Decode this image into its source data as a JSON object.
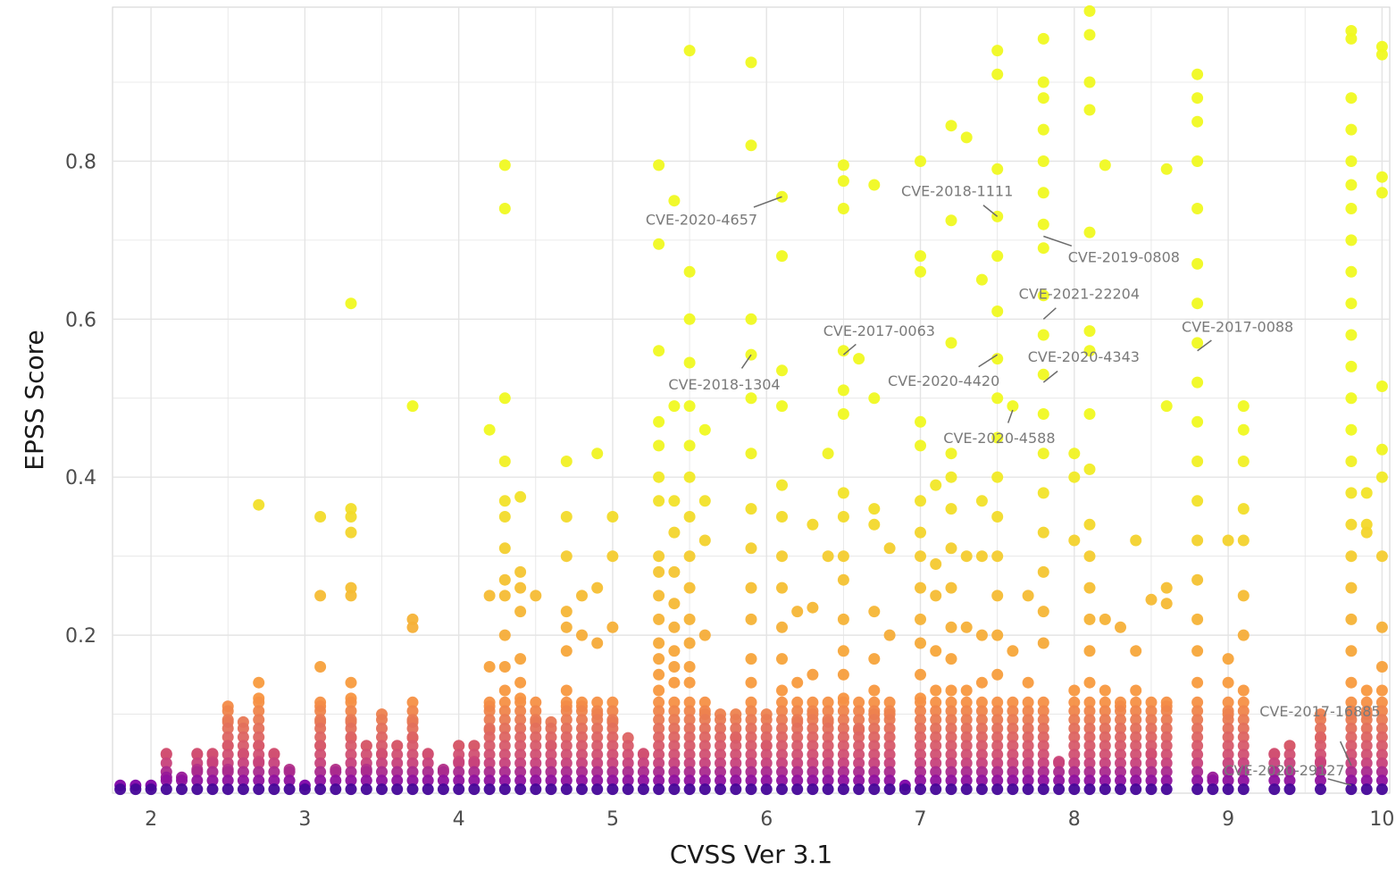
{
  "chart_data": {
    "type": "scatter",
    "xlabel": "CVSS Ver 3.1",
    "ylabel": "EPSS Score",
    "xlim": [
      1.75,
      10.05
    ],
    "ylim": [
      0,
      0.995
    ],
    "x_ticks": [
      2,
      3,
      4,
      5,
      6,
      7,
      8,
      9,
      10
    ],
    "x_tick_labels": [
      "2",
      "3",
      "4",
      "5",
      "6",
      "7",
      "8",
      "9",
      "10"
    ],
    "y_ticks": [
      0.2,
      0.4,
      0.6,
      0.8
    ],
    "y_tick_labels": [
      "0.2",
      "0.4",
      "0.6",
      "0.8"
    ],
    "grid": true,
    "legend": "none",
    "color_scale": "plasma (point density / colour by value)",
    "colors": [
      "#0d0887",
      "#7e03a8",
      "#cc4778",
      "#f89540",
      "#f0f921"
    ],
    "columns": [
      {
        "x": 1.8,
        "high": [
          0.01
        ]
      },
      {
        "x": 1.9,
        "high": [
          0.01
        ]
      },
      {
        "x": 2.0,
        "high": [
          0.01
        ]
      },
      {
        "x": 2.1,
        "high": [
          0.05,
          0.02
        ]
      },
      {
        "x": 2.2,
        "high": [
          0.02
        ]
      },
      {
        "x": 2.3,
        "high": [
          0.05,
          0.03
        ]
      },
      {
        "x": 2.4,
        "high": [
          0.05,
          0.04
        ]
      },
      {
        "x": 2.5,
        "high": [
          0.11,
          0.09,
          0.06,
          0.03
        ]
      },
      {
        "x": 2.6,
        "high": [
          0.09,
          0.05
        ]
      },
      {
        "x": 2.7,
        "high": [
          0.365,
          0.14,
          0.12,
          0.06,
          0.04
        ]
      },
      {
        "x": 2.8,
        "high": [
          0.05
        ]
      },
      {
        "x": 2.9,
        "high": [
          0.03
        ]
      },
      {
        "x": 3.0,
        "high": [
          0.01
        ]
      },
      {
        "x": 3.1,
        "high": [
          0.35,
          0.25,
          0.16,
          0.11,
          0.09,
          0.06
        ]
      },
      {
        "x": 3.2,
        "high": [
          0.03
        ]
      },
      {
        "x": 3.3,
        "high": [
          0.62,
          0.36,
          0.35,
          0.33,
          0.26,
          0.25,
          0.14,
          0.12,
          0.09,
          0.07
        ]
      },
      {
        "x": 3.4,
        "high": [
          0.06,
          0.03
        ]
      },
      {
        "x": 3.5,
        "high": [
          0.1,
          0.05
        ]
      },
      {
        "x": 3.6,
        "high": [
          0.06
        ]
      },
      {
        "x": 3.7,
        "high": [
          0.49,
          0.22,
          0.21,
          0.09,
          0.07
        ]
      },
      {
        "x": 3.8,
        "high": [
          0.05
        ]
      },
      {
        "x": 3.9,
        "high": [
          0.03
        ]
      },
      {
        "x": 4.0,
        "high": [
          0.06,
          0.04
        ]
      },
      {
        "x": 4.1,
        "high": [
          0.06,
          0.04
        ]
      },
      {
        "x": 4.2,
        "high": [
          0.46,
          0.25,
          0.16,
          0.11,
          0.08
        ]
      },
      {
        "x": 4.3,
        "high": [
          0.795,
          0.74,
          0.5,
          0.42,
          0.37,
          0.35,
          0.31,
          0.27,
          0.25,
          0.2,
          0.16,
          0.13
        ]
      },
      {
        "x": 4.4,
        "high": [
          0.375,
          0.28,
          0.26,
          0.23,
          0.17,
          0.14,
          0.12
        ]
      },
      {
        "x": 4.5,
        "high": [
          0.25,
          0.09
        ]
      },
      {
        "x": 4.6,
        "high": [
          0.09,
          0.06
        ]
      },
      {
        "x": 4.7,
        "high": [
          0.42,
          0.35,
          0.3,
          0.23,
          0.21,
          0.18,
          0.13,
          0.11
        ]
      },
      {
        "x": 4.8,
        "high": [
          0.25,
          0.2,
          0.11
        ]
      },
      {
        "x": 4.9,
        "high": [
          0.43,
          0.26,
          0.19,
          0.1
        ]
      },
      {
        "x": 5.0,
        "high": [
          0.35,
          0.3,
          0.21,
          0.09
        ]
      },
      {
        "x": 5.1,
        "high": [
          0.07
        ]
      },
      {
        "x": 5.2,
        "high": [
          0.05
        ]
      },
      {
        "x": 5.3,
        "high": [
          0.795,
          0.695,
          0.56,
          0.47,
          0.44,
          0.4,
          0.37,
          0.3,
          0.28,
          0.25,
          0.22,
          0.19,
          0.17,
          0.15,
          0.13
        ]
      },
      {
        "x": 5.4,
        "high": [
          0.75,
          0.49,
          0.37,
          0.33,
          0.28,
          0.24,
          0.21,
          0.18,
          0.16,
          0.14
        ]
      },
      {
        "x": 5.5,
        "high": [
          0.94,
          0.66,
          0.6,
          0.545,
          0.49,
          0.44,
          0.4,
          0.35,
          0.3,
          0.26,
          0.22,
          0.19,
          0.16,
          0.14
        ]
      },
      {
        "x": 5.6,
        "high": [
          0.46,
          0.37,
          0.32,
          0.2,
          0.1
        ]
      },
      {
        "x": 5.7,
        "high": [
          0.1
        ]
      },
      {
        "x": 5.8,
        "high": [
          0.1,
          0.07
        ]
      },
      {
        "x": 5.9,
        "high": [
          0.925,
          0.82,
          0.6,
          0.555,
          0.5,
          0.43,
          0.36,
          0.31,
          0.26,
          0.22,
          0.17,
          0.14
        ]
      },
      {
        "x": 6.0,
        "high": [
          0.1,
          0.06
        ]
      },
      {
        "x": 6.1,
        "high": [
          0.755,
          0.68,
          0.535,
          0.49,
          0.39,
          0.35,
          0.3,
          0.26,
          0.21,
          0.17,
          0.13
        ]
      },
      {
        "x": 6.2,
        "high": [
          0.23,
          0.14,
          0.09
        ]
      },
      {
        "x": 6.3,
        "high": [
          0.34,
          0.235,
          0.15,
          0.1
        ]
      },
      {
        "x": 6.4,
        "high": [
          0.43,
          0.3,
          0.09
        ]
      },
      {
        "x": 6.5,
        "high": [
          0.795,
          0.775,
          0.74,
          0.56,
          0.51,
          0.48,
          0.38,
          0.35,
          0.3,
          0.27,
          0.22,
          0.18,
          0.15,
          0.12
        ]
      },
      {
        "x": 6.6,
        "high": [
          0.55,
          0.08
        ]
      },
      {
        "x": 6.7,
        "high": [
          0.77,
          0.5,
          0.36,
          0.34,
          0.23,
          0.17,
          0.13,
          0.1
        ]
      },
      {
        "x": 6.8,
        "high": [
          0.31,
          0.2,
          0.1
        ]
      },
      {
        "x": 6.9,
        "high": [
          0.01
        ]
      },
      {
        "x": 7.0,
        "high": [
          0.8,
          0.68,
          0.66,
          0.47,
          0.44,
          0.37,
          0.33,
          0.3,
          0.26,
          0.22,
          0.19,
          0.15,
          0.12
        ]
      },
      {
        "x": 7.1,
        "high": [
          0.39,
          0.29,
          0.25,
          0.18,
          0.13
        ]
      },
      {
        "x": 7.2,
        "high": [
          0.845,
          0.725,
          0.57,
          0.43,
          0.4,
          0.36,
          0.31,
          0.26,
          0.21,
          0.17,
          0.13
        ]
      },
      {
        "x": 7.3,
        "high": [
          0.83,
          0.3,
          0.21,
          0.13
        ]
      },
      {
        "x": 7.4,
        "high": [
          0.65,
          0.37,
          0.3,
          0.2,
          0.14
        ]
      },
      {
        "x": 7.5,
        "high": [
          0.94,
          0.91,
          0.79,
          0.73,
          0.68,
          0.61,
          0.55,
          0.5,
          0.45,
          0.4,
          0.35,
          0.3,
          0.25,
          0.2,
          0.15
        ]
      },
      {
        "x": 7.6,
        "high": [
          0.49,
          0.18
        ]
      },
      {
        "x": 7.7,
        "high": [
          0.25,
          0.14
        ]
      },
      {
        "x": 7.8,
        "high": [
          0.955,
          0.9,
          0.88,
          0.84,
          0.8,
          0.76,
          0.72,
          0.69,
          0.63,
          0.58,
          0.53,
          0.48,
          0.43,
          0.38,
          0.33,
          0.28,
          0.23,
          0.19
        ]
      },
      {
        "x": 7.9,
        "high": [
          0.04
        ]
      },
      {
        "x": 8.0,
        "high": [
          0.43,
          0.4,
          0.32,
          0.13
        ]
      },
      {
        "x": 8.1,
        "high": [
          0.99,
          0.96,
          0.9,
          0.865,
          0.71,
          0.585,
          0.56,
          0.48,
          0.41,
          0.34,
          0.3,
          0.26,
          0.22,
          0.18,
          0.14
        ]
      },
      {
        "x": 8.2,
        "high": [
          0.795,
          0.22,
          0.13
        ]
      },
      {
        "x": 8.3,
        "high": [
          0.21,
          0.11
        ]
      },
      {
        "x": 8.4,
        "high": [
          0.32,
          0.18,
          0.13
        ]
      },
      {
        "x": 8.5,
        "high": [
          0.245,
          0.05
        ]
      },
      {
        "x": 8.6,
        "high": [
          0.79,
          0.49,
          0.26,
          0.24,
          0.11
        ]
      },
      {
        "x": 8.8,
        "high": [
          0.91,
          0.88,
          0.85,
          0.8,
          0.74,
          0.67,
          0.62,
          0.57,
          0.52,
          0.47,
          0.42,
          0.37,
          0.32,
          0.27,
          0.22,
          0.18,
          0.14
        ]
      },
      {
        "x": 8.9,
        "high": [
          0.02
        ]
      },
      {
        "x": 9.0,
        "high": [
          0.32,
          0.17,
          0.14,
          0.1
        ]
      },
      {
        "x": 9.1,
        "high": [
          0.49,
          0.46,
          0.42,
          0.36,
          0.32,
          0.25,
          0.2,
          0.13
        ]
      },
      {
        "x": 9.3,
        "high": [
          0.05
        ]
      },
      {
        "x": 9.4,
        "high": [
          0.06
        ]
      },
      {
        "x": 9.6,
        "high": [
          0.1,
          0.07,
          0.04
        ]
      },
      {
        "x": 9.8,
        "high": [
          0.965,
          0.955,
          0.88,
          0.84,
          0.8,
          0.77,
          0.74,
          0.7,
          0.66,
          0.62,
          0.58,
          0.54,
          0.5,
          0.46,
          0.42,
          0.38,
          0.34,
          0.3,
          0.26,
          0.22,
          0.18,
          0.14,
          0.1
        ]
      },
      {
        "x": 9.9,
        "high": [
          0.38,
          0.34,
          0.33,
          0.13,
          0.1
        ]
      },
      {
        "x": 10.0,
        "high": [
          0.945,
          0.935,
          0.78,
          0.76,
          0.515,
          0.435,
          0.4,
          0.3,
          0.21,
          0.16,
          0.13
        ]
      }
    ],
    "annotations": [
      {
        "label": "CVE-2020-4657",
        "x": 6.1,
        "y": 0.755
      },
      {
        "label": "CVE-2018-1111",
        "x": 7.5,
        "y": 0.73
      },
      {
        "label": "CVE-2019-0808",
        "x": 7.8,
        "y": 0.705
      },
      {
        "label": "CVE-2021-22204",
        "x": 7.8,
        "y": 0.6
      },
      {
        "label": "CVE-2017-0063",
        "x": 6.5,
        "y": 0.555
      },
      {
        "label": "CVE-2017-0088",
        "x": 8.8,
        "y": 0.56
      },
      {
        "label": "CVE-2018-1304",
        "x": 5.9,
        "y": 0.555
      },
      {
        "label": "CVE-2020-4420",
        "x": 7.5,
        "y": 0.555
      },
      {
        "label": "CVE-2020-4343",
        "x": 7.8,
        "y": 0.52
      },
      {
        "label": "CVE-2020-4588",
        "x": 7.6,
        "y": 0.485
      },
      {
        "label": "CVE-2017-16885",
        "x": 9.8,
        "y": 0.035
      },
      {
        "label": "CVE-2020-29127",
        "x": 9.8,
        "y": 0.01
      }
    ]
  }
}
